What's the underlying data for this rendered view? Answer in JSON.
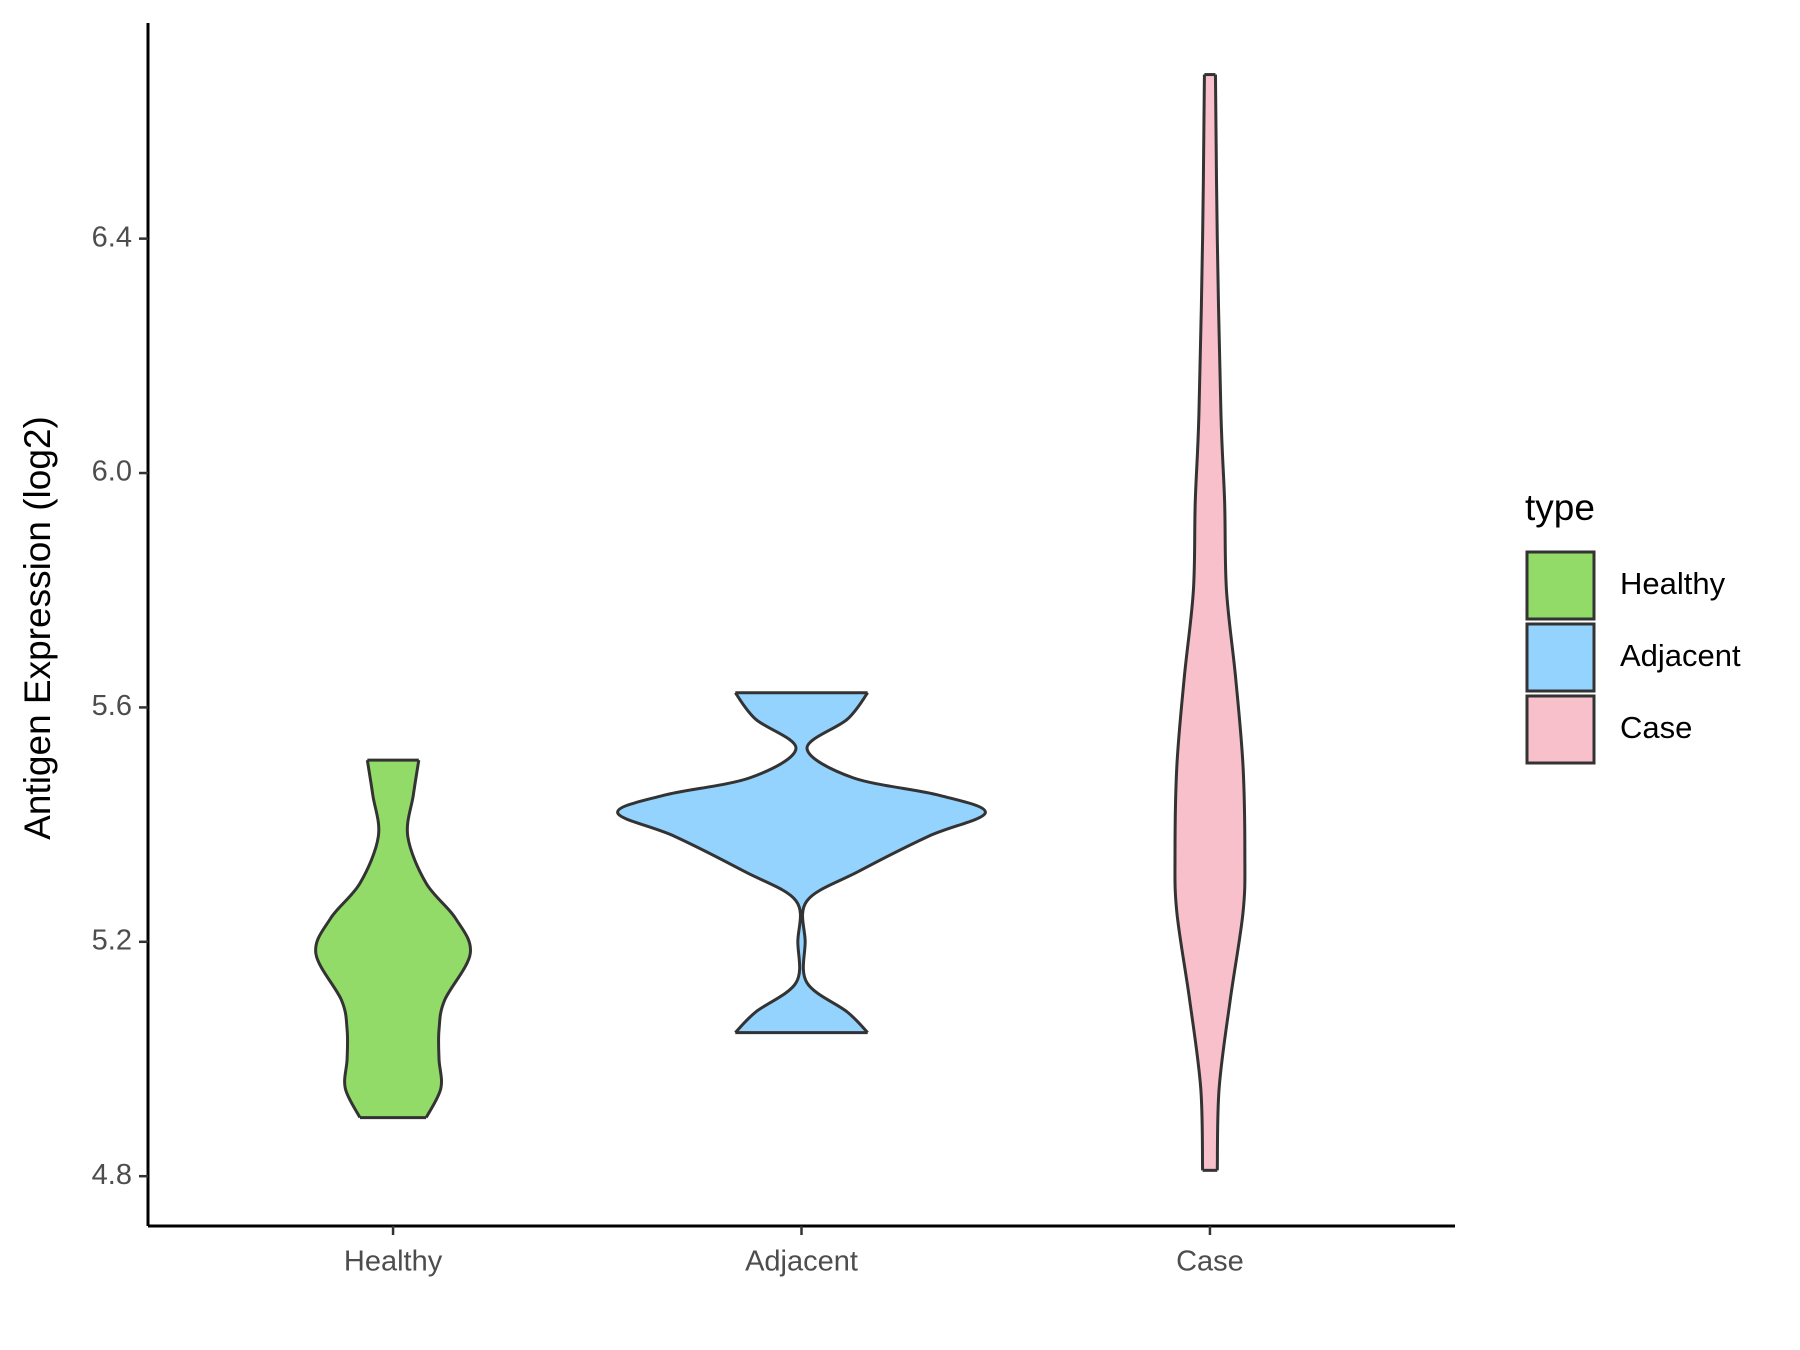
{
  "chart_data": {
    "type": "violin",
    "y_label": "Antigen Expression (log2)",
    "categories": [
      "Healthy",
      "Adjacent",
      "Case"
    ],
    "ylim": [
      4.715,
      6.768
    ],
    "yticks": [
      {
        "value": 4.8,
        "label": "4.8"
      },
      {
        "value": 5.2,
        "label": "5.2"
      },
      {
        "value": 5.6,
        "label": "5.6"
      },
      {
        "value": 6.0,
        "label": "6.0"
      },
      {
        "value": 6.4,
        "label": "6.4"
      }
    ],
    "legend_title": "type",
    "legend_position": "right",
    "series": [
      {
        "name": "Healthy",
        "color": "#92db69",
        "y": [
          5.51,
          5.45,
          5.38,
          5.3,
          5.24,
          5.18,
          5.1,
          5.05,
          5.0,
          4.95,
          4.9
        ],
        "width": [
          0.14,
          0.11,
          0.08,
          0.18,
          0.34,
          0.42,
          0.28,
          0.25,
          0.25,
          0.26,
          0.18
        ]
      },
      {
        "name": "Adjacent",
        "color": "#94d3fd",
        "y": [
          5.625,
          5.58,
          5.53,
          5.48,
          5.45,
          5.42,
          5.38,
          5.32,
          5.27,
          5.2,
          5.13,
          5.08,
          5.045
        ],
        "width": [
          0.36,
          0.25,
          0.03,
          0.28,
          0.75,
          1.0,
          0.69,
          0.31,
          0.03,
          0.02,
          0.03,
          0.25,
          0.36
        ]
      },
      {
        "name": "Case",
        "color": "#f7c0cb",
        "y": [
          6.68,
          6.4,
          6.1,
          5.95,
          5.8,
          5.65,
          5.5,
          5.35,
          5.25,
          5.1,
          4.95,
          4.81
        ],
        "width": [
          0.03,
          0.04,
          0.06,
          0.08,
          0.09,
          0.14,
          0.18,
          0.19,
          0.18,
          0.11,
          0.05,
          0.04
        ]
      }
    ]
  }
}
